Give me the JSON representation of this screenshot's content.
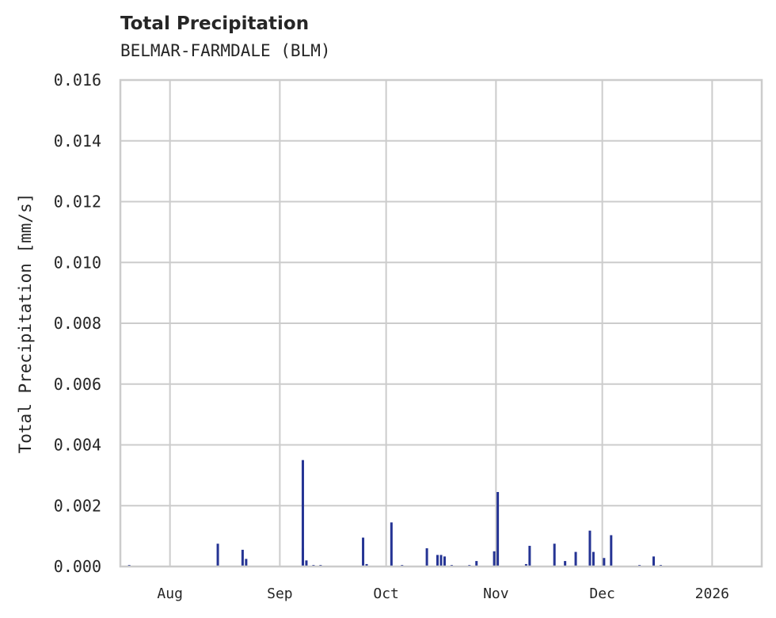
{
  "header": {
    "title": "Total Precipitation",
    "subtitle": "BELMAR-FARMDALE (BLM)"
  },
  "axes": {
    "ylabel": "Total Precipitation [mm/s]",
    "yticks": [
      "0.000",
      "0.002",
      "0.004",
      "0.006",
      "0.008",
      "0.010",
      "0.012",
      "0.014",
      "0.016"
    ],
    "xticks": [
      "Aug",
      "Sep",
      "Oct",
      "Nov",
      "Dec",
      "2026"
    ]
  },
  "colors": {
    "bar": "#253494",
    "grid": "#cccccc",
    "text": "#262626"
  },
  "chart_data": {
    "type": "bar",
    "title": "Total Precipitation",
    "subtitle": "BELMAR-FARMDALE (BLM)",
    "xlabel": "",
    "ylabel": "Total Precipitation [mm/s]",
    "ylim": [
      0,
      0.016
    ],
    "xlim": [
      "2025-07-18",
      "2026-01-15"
    ],
    "grid": true,
    "legend": null,
    "x_tick_labels": [
      "Aug",
      "Sep",
      "Oct",
      "Nov",
      "Dec",
      "2026"
    ],
    "y_tick_labels": [
      "0.000",
      "0.002",
      "0.004",
      "0.006",
      "0.008",
      "0.010",
      "0.012",
      "0.014",
      "0.016"
    ],
    "x": [
      "2025-07-20",
      "2025-08-14",
      "2025-08-21",
      "2025-08-22",
      "2025-09-07",
      "2025-09-07",
      "2025-09-08",
      "2025-09-10",
      "2025-09-12",
      "2025-09-24",
      "2025-09-25",
      "2025-10-02",
      "2025-10-05",
      "2025-10-12",
      "2025-10-15",
      "2025-10-16",
      "2025-10-17",
      "2025-10-19",
      "2025-10-24",
      "2025-10-26",
      "2025-10-31",
      "2025-11-01",
      "2025-11-09",
      "2025-11-10",
      "2025-11-17",
      "2025-11-20",
      "2025-11-23",
      "2025-11-27",
      "2025-11-28",
      "2025-12-01",
      "2025-12-03",
      "2025-12-11",
      "2025-12-15",
      "2025-12-17"
    ],
    "values": [
      5e-05,
      0.00075,
      0.00055,
      0.00025,
      0.0035,
      0.0006,
      0.0002,
      5e-05,
      5e-05,
      0.00095,
      8e-05,
      0.00145,
      5e-05,
      0.0006,
      0.00038,
      0.00038,
      0.00033,
      5e-05,
      5e-05,
      0.00018,
      0.0005,
      0.00245,
      8e-05,
      0.00068,
      0.00075,
      0.00018,
      0.00048,
      0.00118,
      0.00048,
      0.00028,
      0.00103,
      5e-05,
      0.00033,
      5e-05
    ]
  }
}
